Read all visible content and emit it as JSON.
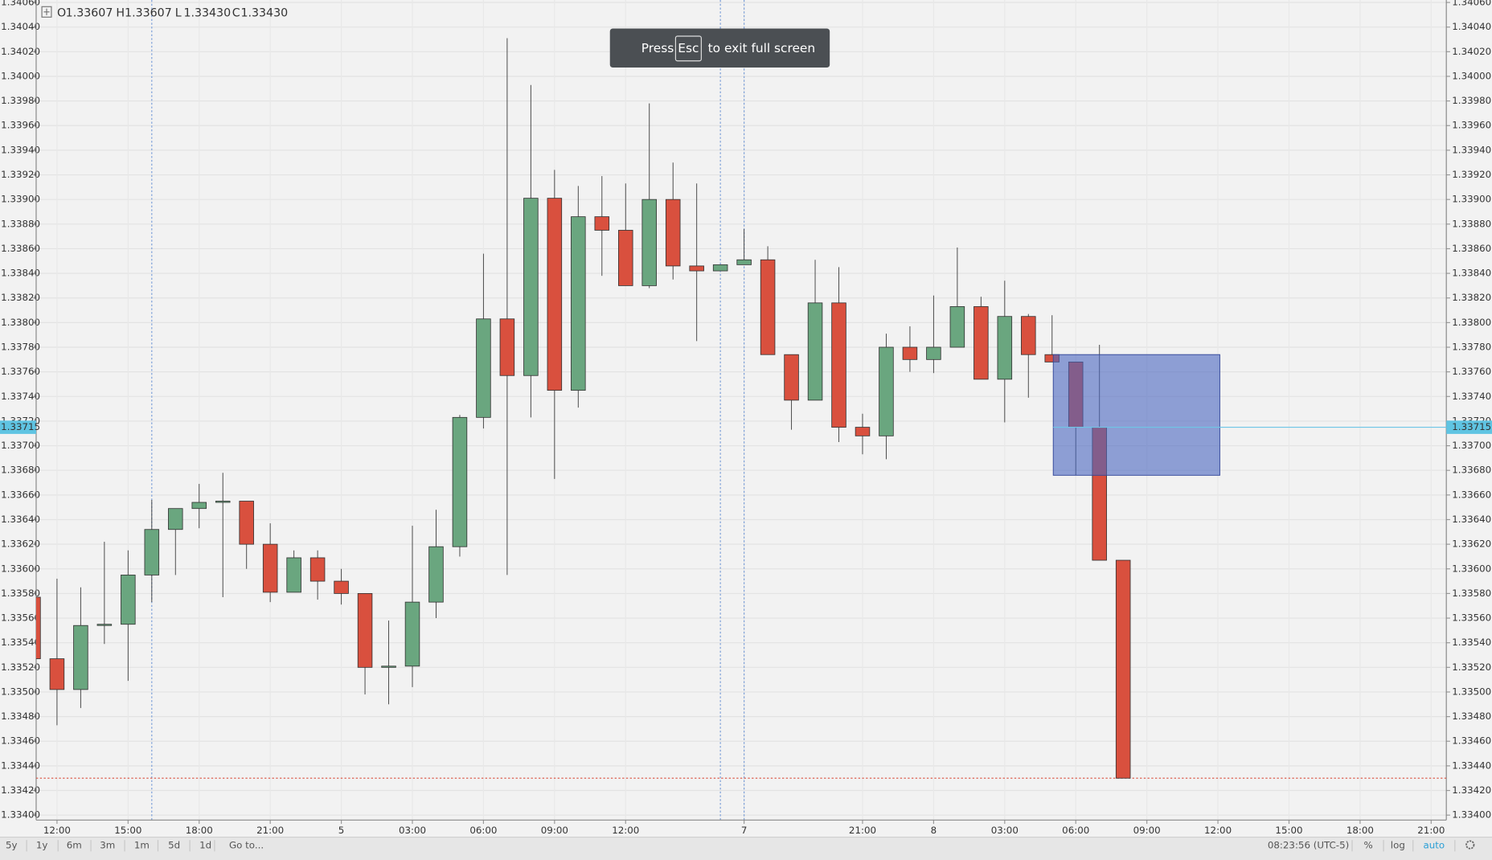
{
  "chart_data": {
    "type": "candlestick",
    "x": [
      -1,
      0,
      1,
      2,
      3,
      4,
      5,
      6,
      7,
      8,
      9,
      10,
      11,
      12,
      13,
      14,
      15,
      16,
      17,
      18,
      19,
      20,
      21,
      22,
      23,
      24,
      25,
      26,
      27,
      28,
      29,
      30,
      31,
      32,
      33,
      34,
      35,
      36,
      37,
      38,
      39,
      40,
      41,
      42,
      43,
      44,
      45
    ],
    "open": [
      1.33577,
      1.33527,
      1.33502,
      1.33554,
      1.33555,
      1.33595,
      1.33632,
      1.33649,
      1.33654,
      1.33655,
      1.3362,
      1.33581,
      1.33609,
      1.3359,
      1.3358,
      1.3352,
      1.33521,
      1.33573,
      1.33618,
      1.33723,
      1.33803,
      1.33757,
      1.33901,
      1.33745,
      1.33886,
      1.33875,
      1.3383,
      1.339,
      1.33846,
      1.33842,
      1.33847,
      1.33851,
      1.33774,
      1.33737,
      1.33816,
      1.33715,
      1.33708,
      1.3378,
      1.3377,
      1.3378,
      1.33813,
      1.33754,
      1.33805,
      1.33774,
      1.33768,
      1.33715,
      1.33607
    ],
    "high": [
      1.3358,
      1.33592,
      1.33585,
      1.33622,
      1.33615,
      1.33656,
      1.33649,
      1.33669,
      1.33678,
      1.33655,
      1.33637,
      1.33615,
      1.33615,
      1.336,
      1.3358,
      1.33558,
      1.33635,
      1.33648,
      1.33725,
      1.33856,
      1.34031,
      1.33993,
      1.33924,
      1.33911,
      1.33919,
      1.33913,
      1.33978,
      1.3393,
      1.33913,
      1.33847,
      1.33876,
      1.33862,
      1.33774,
      1.33851,
      1.33845,
      1.33726,
      1.33791,
      1.33797,
      1.33822,
      1.33861,
      1.33821,
      1.33834,
      1.33807,
      1.33806,
      1.33768,
      1.33782,
      1.33607
    ],
    "low": [
      1.33525,
      1.33473,
      1.33487,
      1.33539,
      1.33509,
      1.33573,
      1.33595,
      1.33633,
      1.33577,
      1.336,
      1.33573,
      1.33581,
      1.33575,
      1.33571,
      1.33498,
      1.3349,
      1.33504,
      1.3356,
      1.3361,
      1.33714,
      1.33595,
      1.33723,
      1.33673,
      1.33731,
      1.33838,
      1.3383,
      1.33828,
      1.33835,
      1.33785,
      1.33842,
      1.33847,
      1.33774,
      1.33713,
      1.33737,
      1.33703,
      1.33693,
      1.33689,
      1.3376,
      1.33759,
      1.3378,
      1.33754,
      1.33719,
      1.33739,
      1.33768,
      1.33676,
      1.33607,
      1.3343
    ],
    "close": [
      1.33527,
      1.33502,
      1.33554,
      1.33555,
      1.33595,
      1.33632,
      1.33649,
      1.33654,
      1.33655,
      1.3362,
      1.33581,
      1.33609,
      1.3359,
      1.3358,
      1.3352,
      1.33521,
      1.33573,
      1.33618,
      1.33723,
      1.33803,
      1.33757,
      1.33901,
      1.33745,
      1.33886,
      1.33875,
      1.3383,
      1.339,
      1.33846,
      1.33842,
      1.33847,
      1.33851,
      1.33774,
      1.33737,
      1.33816,
      1.33715,
      1.33708,
      1.3378,
      1.3377,
      1.3378,
      1.33813,
      1.33754,
      1.33805,
      1.33774,
      1.33768,
      1.33715,
      1.33607,
      1.3343
    ],
    "up_color": "#6aa67f",
    "down_color": "#d9503e",
    "xlim": [
      -0.88,
      58.64
    ],
    "xticks": [
      {
        "value": 0,
        "label": "12:00"
      },
      {
        "value": 3,
        "label": "15:00"
      },
      {
        "value": 6,
        "label": "18:00"
      },
      {
        "value": 9,
        "label": "21:00"
      },
      {
        "value": 12,
        "label": "5"
      },
      {
        "value": 15,
        "label": "03:00"
      },
      {
        "value": 18,
        "label": "06:00"
      },
      {
        "value": 21,
        "label": "09:00"
      },
      {
        "value": 24,
        "label": "12:00"
      },
      {
        "value": 29,
        "label": "7"
      },
      {
        "value": 34,
        "label": "21:00"
      },
      {
        "value": 37,
        "label": "8"
      },
      {
        "value": 40,
        "label": "03:00"
      },
      {
        "value": 43,
        "label": "06:00"
      },
      {
        "value": 46,
        "label": "09:00"
      },
      {
        "value": 49,
        "label": "12:00"
      },
      {
        "value": 52,
        "label": "15:00"
      },
      {
        "value": 55,
        "label": "18:00"
      },
      {
        "value": 58,
        "label": "21:00"
      }
    ],
    "ylim": [
      1.33396,
      1.34062
    ],
    "yticks": [
      {
        "value": 1.334,
        "label": "1.33400"
      },
      {
        "value": 1.3342,
        "label": "1.33420"
      },
      {
        "value": 1.3344,
        "label": "1.33440"
      },
      {
        "value": 1.3346,
        "label": "1.33460"
      },
      {
        "value": 1.3348,
        "label": "1.33480"
      },
      {
        "value": 1.335,
        "label": "1.33500"
      },
      {
        "value": 1.3352,
        "label": "1.33520"
      },
      {
        "value": 1.3354,
        "label": "1.33540"
      },
      {
        "value": 1.3356,
        "label": "1.33560"
      },
      {
        "value": 1.3358,
        "label": "1.33580"
      },
      {
        "value": 1.336,
        "label": "1.33600"
      },
      {
        "value": 1.3362,
        "label": "1.33620"
      },
      {
        "value": 1.3364,
        "label": "1.33640"
      },
      {
        "value": 1.3366,
        "label": "1.33660"
      },
      {
        "value": 1.3368,
        "label": "1.33680"
      },
      {
        "value": 1.337,
        "label": "1.33700"
      },
      {
        "value": 1.3372,
        "label": "1.33720"
      },
      {
        "value": 1.3374,
        "label": "1.33740"
      },
      {
        "value": 1.3376,
        "label": "1.33760"
      },
      {
        "value": 1.3378,
        "label": "1.33780"
      },
      {
        "value": 1.338,
        "label": "1.33800"
      },
      {
        "value": 1.3382,
        "label": "1.33820"
      },
      {
        "value": 1.3384,
        "label": "1.33840"
      },
      {
        "value": 1.3386,
        "label": "1.33860"
      },
      {
        "value": 1.3388,
        "label": "1.33880"
      },
      {
        "value": 1.339,
        "label": "1.33900"
      },
      {
        "value": 1.3392,
        "label": "1.33920"
      },
      {
        "value": 1.3394,
        "label": "1.33940"
      },
      {
        "value": 1.3396,
        "label": "1.33960"
      },
      {
        "value": 1.3398,
        "label": "1.33980"
      },
      {
        "value": 1.34,
        "label": "1.34000"
      },
      {
        "value": 1.3402,
        "label": "1.34020"
      },
      {
        "value": 1.3404,
        "label": "1.34040"
      },
      {
        "value": 1.3406,
        "label": "1.34060"
      }
    ],
    "grid": true,
    "crosshair": 1.33715,
    "vlines": [
      4,
      28,
      29
    ],
    "rectangle": {
      "x": [
        42.05,
        49.08
      ],
      "y": [
        1.33676,
        1.33774
      ],
      "color": "#4a66c0"
    }
  },
  "ui": {
    "header": [
      {
        "key": "O",
        "value": "1.33607"
      },
      {
        "key": "H",
        "value": "1.33607"
      },
      {
        "key": "L",
        "value": "1.33430"
      },
      {
        "key": "C",
        "value": "1.33430"
      }
    ],
    "toast": {
      "before": "Press",
      "key": "Esc",
      "after": "to exit full screen"
    },
    "range_buttons": [
      "5y",
      "1y",
      "6m",
      "3m",
      "1m",
      "5d",
      "1d",
      "Go to..."
    ],
    "status": {
      "time": "08:23:56 (UTC-5)",
      "percent": "%",
      "log": "log",
      "auto": "auto"
    }
  }
}
